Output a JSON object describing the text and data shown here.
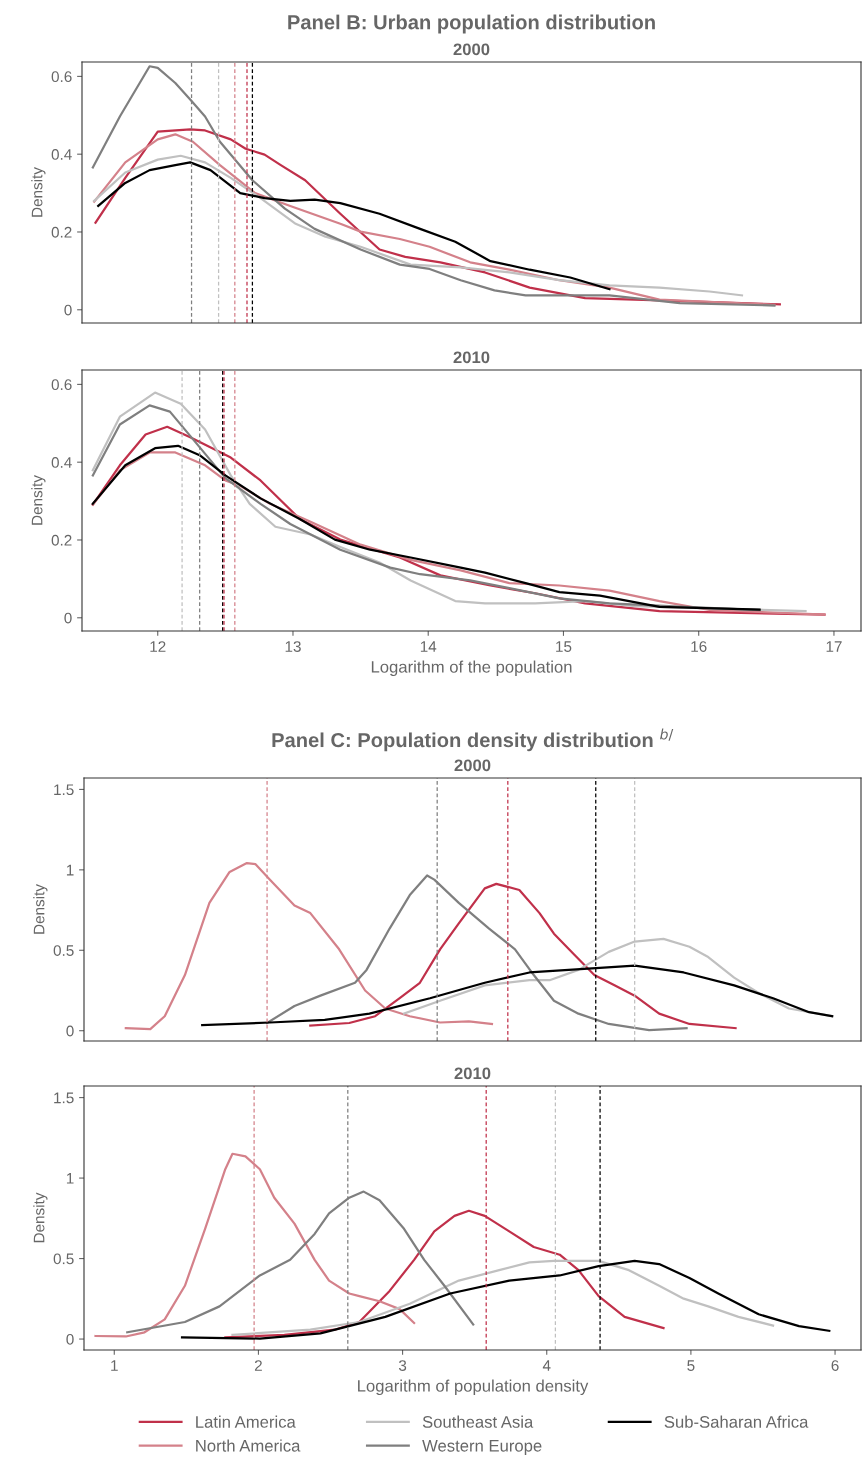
{
  "chart_data": [
    {
      "type": "line",
      "title": "Panel B: Urban population distribution",
      "subtitle": "2000",
      "ylabel": "Density",
      "xlim": [
        11.44,
        17.2
      ],
      "ylim": [
        -0.034,
        0.637
      ],
      "yticks": [
        0,
        0.2,
        0.4,
        0.6
      ],
      "tick_labels": "y",
      "grid": false,
      "legend": "bottom",
      "line_style": "solid",
      "marker": "none",
      "series": [
        {
          "name": "Latin America",
          "color": "#c0304a",
          "x": [
            11.54,
            11.76,
            12.0,
            12.24,
            12.35,
            12.54,
            12.65,
            12.79,
            12.91,
            13.09,
            13.35,
            13.64,
            13.83,
            14.09,
            14.42,
            14.75,
            15.16,
            15.71,
            16.6
          ],
          "values": [
            0.224,
            0.339,
            0.458,
            0.464,
            0.461,
            0.438,
            0.414,
            0.399,
            0.372,
            0.333,
            0.247,
            0.155,
            0.136,
            0.122,
            0.096,
            0.057,
            0.03,
            0.024,
            0.014
          ]
        },
        {
          "name": "North America",
          "color": "#d4818a",
          "x": [
            11.53,
            11.76,
            12.0,
            12.13,
            12.26,
            12.46,
            12.72,
            12.98,
            13.35,
            13.5,
            13.79,
            14.01,
            14.31,
            14.6,
            14.97,
            15.34,
            15.71,
            16.56
          ],
          "values": [
            0.278,
            0.379,
            0.438,
            0.451,
            0.432,
            0.372,
            0.3,
            0.267,
            0.221,
            0.201,
            0.182,
            0.162,
            0.122,
            0.103,
            0.076,
            0.057,
            0.026,
            0.013
          ]
        },
        {
          "name": "Southeast Asia",
          "color": "#c0c0c0",
          "x": [
            11.53,
            11.76,
            12.0,
            12.17,
            12.35,
            12.54,
            12.76,
            13.02,
            13.24,
            13.5,
            13.87,
            14.24,
            14.6,
            14.97,
            15.34,
            15.71,
            16.08,
            16.32
          ],
          "values": [
            0.28,
            0.353,
            0.386,
            0.396,
            0.379,
            0.339,
            0.287,
            0.221,
            0.188,
            0.162,
            0.116,
            0.109,
            0.096,
            0.076,
            0.063,
            0.057,
            0.047,
            0.037
          ]
        },
        {
          "name": "Western Europe",
          "color": "#7f7f7f",
          "x": [
            11.52,
            11.72,
            11.94,
            12.0,
            12.13,
            12.25,
            12.35,
            12.46,
            12.7,
            12.94,
            13.16,
            13.5,
            13.79,
            14.01,
            14.24,
            14.49,
            14.72,
            14.97,
            15.34,
            15.86,
            16.56
          ],
          "values": [
            0.366,
            0.497,
            0.626,
            0.622,
            0.583,
            0.537,
            0.497,
            0.432,
            0.333,
            0.26,
            0.208,
            0.155,
            0.116,
            0.105,
            0.076,
            0.05,
            0.037,
            0.037,
            0.037,
            0.017,
            0.011
          ]
        },
        {
          "name": "Sub-Saharan Africa",
          "color": "#000000",
          "x": [
            11.56,
            11.76,
            11.94,
            12.13,
            12.24,
            12.39,
            12.61,
            12.79,
            12.98,
            13.16,
            13.35,
            13.64,
            13.94,
            14.2,
            14.46,
            14.75,
            15.05,
            15.34
          ],
          "values": [
            0.267,
            0.326,
            0.359,
            0.372,
            0.379,
            0.359,
            0.3,
            0.287,
            0.28,
            0.283,
            0.274,
            0.247,
            0.208,
            0.175,
            0.125,
            0.103,
            0.083,
            0.053
          ]
        }
      ],
      "ref_lines": [
        {
          "axis": "x",
          "value": 12.25,
          "color": "#7f7f7f",
          "line_style": "dashed"
        },
        {
          "axis": "x",
          "value": 12.45,
          "color": "#c0c0c0",
          "line_style": "dashed"
        },
        {
          "axis": "x",
          "value": 12.57,
          "color": "#d4818a",
          "line_style": "dashed"
        },
        {
          "axis": "x",
          "value": 12.66,
          "color": "#c0304a",
          "line_style": "dashed"
        },
        {
          "axis": "x",
          "value": 12.7,
          "color": "#000000",
          "line_style": "dashed"
        }
      ]
    },
    {
      "type": "line",
      "subtitle": "2010",
      "xlabel": "Logarithm of the population",
      "ylabel": "Density",
      "xlim": [
        11.44,
        17.2
      ],
      "ylim": [
        -0.034,
        0.637
      ],
      "xticks": [
        12,
        13,
        14,
        15,
        16,
        17
      ],
      "yticks": [
        0,
        0.2,
        0.4,
        0.6
      ],
      "grid": false,
      "line_style": "solid",
      "marker": "none",
      "series": [
        {
          "color": "#c0304a",
          "x": [
            11.52,
            11.72,
            11.91,
            12.07,
            12.24,
            12.54,
            12.76,
            13.05,
            13.35,
            13.79,
            14.09,
            14.46,
            14.79,
            15.16,
            15.71,
            16.93
          ],
          "values": [
            0.291,
            0.392,
            0.471,
            0.491,
            0.464,
            0.412,
            0.353,
            0.254,
            0.201,
            0.155,
            0.109,
            0.083,
            0.063,
            0.037,
            0.017,
            0.008
          ]
        },
        {
          "color": "#d4818a",
          "x": [
            11.52,
            11.72,
            11.94,
            12.13,
            12.35,
            12.5,
            12.61,
            12.83,
            13.13,
            13.5,
            13.87,
            14.24,
            14.6,
            14.97,
            15.34,
            15.71,
            16.08,
            16.93
          ],
          "values": [
            0.291,
            0.379,
            0.425,
            0.425,
            0.392,
            0.353,
            0.339,
            0.293,
            0.247,
            0.188,
            0.149,
            0.122,
            0.089,
            0.083,
            0.07,
            0.043,
            0.02,
            0.008
          ]
        },
        {
          "color": "#c0c0c0",
          "x": [
            11.52,
            11.72,
            11.98,
            12.17,
            12.35,
            12.54,
            12.68,
            12.87,
            13.13,
            13.35,
            13.64,
            13.87,
            14.2,
            14.42,
            14.79,
            15.16,
            15.53,
            16.08,
            16.79
          ],
          "values": [
            0.379,
            0.517,
            0.579,
            0.55,
            0.484,
            0.366,
            0.293,
            0.234,
            0.214,
            0.182,
            0.142,
            0.096,
            0.043,
            0.037,
            0.037,
            0.043,
            0.03,
            0.024,
            0.017
          ]
        },
        {
          "color": "#7f7f7f",
          "x": [
            11.52,
            11.72,
            11.94,
            12.09,
            12.28,
            12.5,
            12.76,
            12.98,
            13.35,
            13.72,
            13.94,
            14.31,
            14.6,
            14.97,
            15.34,
            15.9,
            16.45
          ],
          "values": [
            0.366,
            0.497,
            0.546,
            0.53,
            0.451,
            0.359,
            0.293,
            0.241,
            0.175,
            0.129,
            0.112,
            0.096,
            0.076,
            0.05,
            0.037,
            0.028,
            0.02
          ]
        },
        {
          "color": "#000000",
          "x": [
            11.52,
            11.76,
            11.98,
            12.15,
            12.31,
            12.5,
            12.76,
            13.05,
            13.31,
            13.57,
            13.87,
            14.24,
            14.42,
            14.72,
            14.97,
            15.27,
            15.71,
            16.45
          ],
          "values": [
            0.293,
            0.392,
            0.436,
            0.442,
            0.418,
            0.366,
            0.307,
            0.254,
            0.201,
            0.175,
            0.155,
            0.129,
            0.116,
            0.089,
            0.066,
            0.057,
            0.028,
            0.021
          ]
        }
      ],
      "ref_lines": [
        {
          "axis": "x",
          "value": 12.18,
          "color": "#c0c0c0",
          "line_style": "dashed"
        },
        {
          "axis": "x",
          "value": 12.31,
          "color": "#7f7f7f",
          "line_style": "dashed"
        },
        {
          "axis": "x",
          "value": 12.48,
          "color": "#000000",
          "line_style": "dashed"
        },
        {
          "axis": "x",
          "value": 12.49,
          "color": "#c0304a",
          "line_style": "dashed"
        },
        {
          "axis": "x",
          "value": 12.57,
          "color": "#d4818a",
          "line_style": "dashed"
        }
      ]
    },
    {
      "type": "line",
      "title": "Panel C: Population density distribution $^{b/}$",
      "subtitle": "2000",
      "ylabel": "Density",
      "xlim": [
        0.79,
        6.18
      ],
      "ylim": [
        -0.064,
        1.571
      ],
      "yticks": [
        0,
        0.5,
        1,
        1.5
      ],
      "tick_labels": "y",
      "grid": false,
      "line_style": "solid",
      "marker": "none",
      "series": [
        {
          "color": "#c0304a",
          "x": [
            2.36,
            2.63,
            2.81,
            2.98,
            3.12,
            3.26,
            3.39,
            3.57,
            3.65,
            3.81,
            3.95,
            4.05,
            4.19,
            4.33,
            4.47,
            4.61,
            4.78,
            4.99,
            5.31
          ],
          "values": [
            0.032,
            0.048,
            0.09,
            0.202,
            0.298,
            0.506,
            0.667,
            0.885,
            0.913,
            0.875,
            0.731,
            0.603,
            0.474,
            0.346,
            0.282,
            0.218,
            0.106,
            0.042,
            0.016
          ]
        },
        {
          "color": "#d4818a",
          "x": [
            1.08,
            1.25,
            1.35,
            1.49,
            1.66,
            1.8,
            1.92,
            1.98,
            2.08,
            2.25,
            2.36,
            2.56,
            2.74,
            2.88,
            3.05,
            3.26,
            3.46,
            3.62
          ],
          "values": [
            0.016,
            0.01,
            0.09,
            0.346,
            0.795,
            0.987,
            1.042,
            1.035,
            0.939,
            0.779,
            0.731,
            0.506,
            0.25,
            0.138,
            0.09,
            0.051,
            0.058,
            0.042
          ]
        },
        {
          "color": "#c0c0c0",
          "x": [
            3.01,
            3.26,
            3.57,
            3.88,
            4.02,
            4.22,
            4.43,
            4.61,
            4.81,
            4.99,
            5.12,
            5.3,
            5.47,
            5.68,
            5.98
          ],
          "values": [
            0.106,
            0.186,
            0.282,
            0.314,
            0.314,
            0.378,
            0.49,
            0.554,
            0.571,
            0.522,
            0.458,
            0.33,
            0.234,
            0.138,
            0.09
          ]
        },
        {
          "color": "#7f7f7f",
          "x": [
            2.06,
            2.25,
            2.43,
            2.67,
            2.75,
            2.91,
            3.05,
            3.17,
            3.22,
            3.39,
            3.6,
            3.78,
            3.91,
            4.05,
            4.22,
            4.43,
            4.71,
            4.97
          ],
          "values": [
            0.048,
            0.154,
            0.218,
            0.298,
            0.378,
            0.635,
            0.843,
            0.965,
            0.939,
            0.795,
            0.635,
            0.506,
            0.346,
            0.186,
            0.106,
            0.042,
            0.003,
            0.016
          ]
        },
        {
          "color": "#000000",
          "x": [
            1.61,
            2.08,
            2.46,
            2.77,
            3.19,
            3.57,
            3.88,
            4.26,
            4.61,
            4.95,
            5.3,
            5.57,
            5.82,
            5.98
          ],
          "values": [
            0.035,
            0.051,
            0.067,
            0.106,
            0.202,
            0.298,
            0.362,
            0.385,
            0.404,
            0.362,
            0.282,
            0.202,
            0.115,
            0.09
          ]
        }
      ],
      "ref_lines": [
        {
          "axis": "x",
          "value": 2.06,
          "color": "#d4818a",
          "line_style": "dashed"
        },
        {
          "axis": "x",
          "value": 3.24,
          "color": "#7f7f7f",
          "line_style": "dashed"
        },
        {
          "axis": "x",
          "value": 3.73,
          "color": "#c0304a",
          "line_style": "dashed"
        },
        {
          "axis": "x",
          "value": 4.34,
          "color": "#000000",
          "line_style": "dashed"
        },
        {
          "axis": "x",
          "value": 4.61,
          "color": "#c0c0c0",
          "line_style": "dashed"
        }
      ]
    },
    {
      "type": "line",
      "subtitle": "2010",
      "xlabel": "Logarithm of population density",
      "ylabel": "Density",
      "xlim": [
        0.79,
        6.18
      ],
      "ylim": [
        -0.068,
        1.572
      ],
      "xticks": [
        1,
        2,
        3,
        4,
        5,
        6
      ],
      "yticks": [
        0,
        0.5,
        1,
        1.5
      ],
      "grid": false,
      "line_style": "solid",
      "marker": "none",
      "series": [
        {
          "color": "#c0304a",
          "x": [
            1.77,
            2.18,
            2.53,
            2.7,
            2.91,
            3.08,
            3.22,
            3.36,
            3.46,
            3.57,
            3.74,
            3.91,
            4.09,
            4.22,
            4.36,
            4.54,
            4.81
          ],
          "values": [
            0.01,
            0.026,
            0.058,
            0.106,
            0.299,
            0.492,
            0.669,
            0.765,
            0.797,
            0.765,
            0.669,
            0.572,
            0.524,
            0.428,
            0.267,
            0.138,
            0.068
          ]
        },
        {
          "color": "#d4818a",
          "x": [
            0.87,
            1.08,
            1.21,
            1.35,
            1.49,
            1.63,
            1.77,
            1.82,
            1.91,
            2.01,
            2.11,
            2.25,
            2.39,
            2.49,
            2.63,
            2.7,
            2.84,
            2.98,
            3.08
          ],
          "values": [
            0.019,
            0.016,
            0.042,
            0.122,
            0.331,
            0.685,
            1.055,
            1.151,
            1.135,
            1.055,
            0.878,
            0.717,
            0.492,
            0.363,
            0.283,
            0.267,
            0.235,
            0.186,
            0.1
          ]
        },
        {
          "color": "#c0c0c0",
          "x": [
            1.82,
            2.36,
            2.7,
            3.05,
            3.39,
            3.67,
            3.88,
            4.05,
            4.36,
            4.57,
            4.78,
            4.95,
            5.12,
            5.33,
            5.57
          ],
          "values": [
            0.026,
            0.058,
            0.106,
            0.219,
            0.363,
            0.428,
            0.476,
            0.486,
            0.486,
            0.428,
            0.331,
            0.251,
            0.203,
            0.138,
            0.084
          ]
        },
        {
          "color": "#7f7f7f",
          "x": [
            1.09,
            1.49,
            1.73,
            2.01,
            2.22,
            2.39,
            2.49,
            2.63,
            2.73,
            2.84,
            3.01,
            3.15,
            3.29,
            3.49
          ],
          "values": [
            0.042,
            0.106,
            0.203,
            0.395,
            0.492,
            0.653,
            0.781,
            0.878,
            0.916,
            0.862,
            0.685,
            0.492,
            0.331,
            0.09
          ]
        },
        {
          "color": "#000000",
          "x": [
            1.47,
            2.01,
            2.43,
            2.88,
            3.33,
            3.74,
            4.09,
            4.36,
            4.61,
            4.78,
            4.99,
            5.19,
            5.47,
            5.75,
            5.96
          ],
          "values": [
            0.01,
            0.003,
            0.035,
            0.138,
            0.283,
            0.363,
            0.395,
            0.453,
            0.486,
            0.466,
            0.379,
            0.283,
            0.154,
            0.08,
            0.051
          ]
        }
      ],
      "ref_lines": [
        {
          "axis": "x",
          "value": 1.97,
          "color": "#d4818a",
          "line_style": "dashed"
        },
        {
          "axis": "x",
          "value": 2.62,
          "color": "#7f7f7f",
          "line_style": "dashed"
        },
        {
          "axis": "x",
          "value": 3.58,
          "color": "#c0304a",
          "line_style": "dashed"
        },
        {
          "axis": "x",
          "value": 4.06,
          "color": "#c0c0c0",
          "line_style": "dashed"
        },
        {
          "axis": "x",
          "value": 4.37,
          "color": "#000000",
          "line_style": "dashed"
        }
      ]
    }
  ]
}
